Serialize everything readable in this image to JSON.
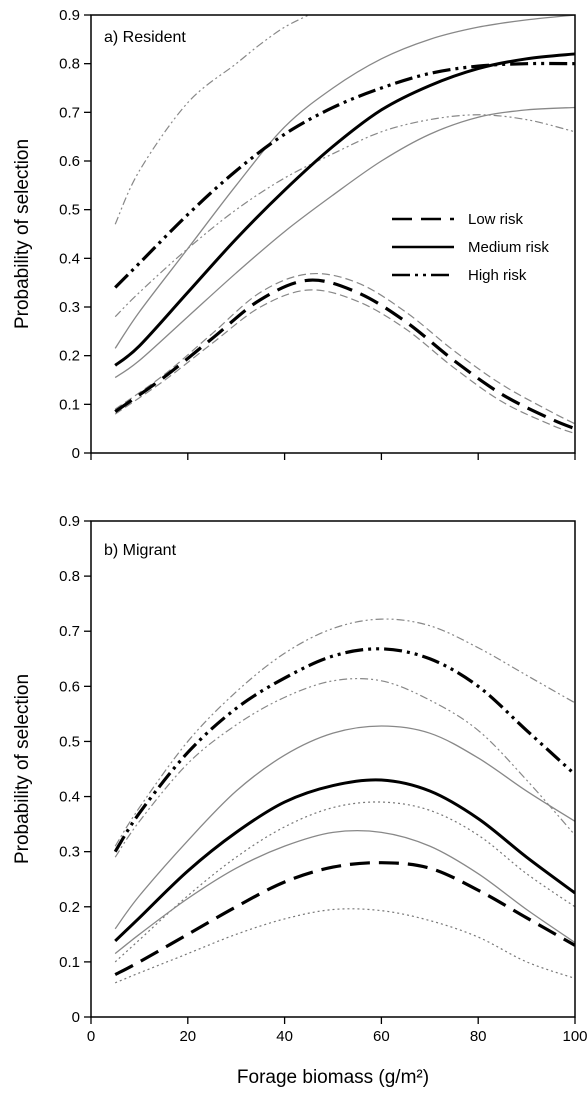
{
  "chart_data": [
    {
      "type": "line",
      "panel_label": "a) Resident",
      "xlabel": "",
      "ylabel": "Probability of selection",
      "xlim": [
        0,
        100
      ],
      "ylim": [
        0,
        0.9
      ],
      "xticks": [
        0,
        20,
        40,
        60,
        80,
        100
      ],
      "xtick_labels_shown": false,
      "yticks": [
        0,
        0.1,
        0.2,
        0.3,
        0.4,
        0.5,
        0.6,
        0.7,
        0.8,
        0.9
      ],
      "ytick_labels": [
        "0",
        "0.1",
        "0.2",
        "0.3",
        "0.4",
        "0.5",
        "0.6",
        "0.7",
        "0.8",
        "0.9"
      ],
      "grid": false,
      "legend": {
        "placement": "center-right",
        "entries": [
          "Low risk",
          "Medium risk",
          "High risk"
        ]
      },
      "series": [
        {
          "name": "Low risk",
          "style": "long-dash",
          "x": [
            5,
            15,
            25,
            35,
            45,
            55,
            65,
            75,
            85,
            95,
            100
          ],
          "y": [
            0.085,
            0.155,
            0.235,
            0.315,
            0.355,
            0.33,
            0.27,
            0.19,
            0.12,
            0.07,
            0.05
          ]
        },
        {
          "style": "long-dash-band",
          "x": [
            5,
            15,
            25,
            35,
            45,
            55,
            65,
            75,
            85,
            95,
            100
          ],
          "y": [
            0.09,
            0.16,
            0.245,
            0.33,
            0.368,
            0.35,
            0.29,
            0.21,
            0.14,
            0.085,
            0.06
          ]
        },
        {
          "style": "long-dash-band",
          "x": [
            5,
            15,
            25,
            35,
            45,
            55,
            65,
            75,
            85,
            95,
            100
          ],
          "y": [
            0.08,
            0.148,
            0.225,
            0.3,
            0.335,
            0.312,
            0.255,
            0.175,
            0.105,
            0.058,
            0.04
          ]
        },
        {
          "name": "Medium risk",
          "style": "solid",
          "x": [
            5,
            10,
            20,
            30,
            40,
            50,
            60,
            70,
            80,
            90,
            100
          ],
          "y": [
            0.18,
            0.22,
            0.33,
            0.44,
            0.54,
            0.63,
            0.705,
            0.755,
            0.79,
            0.81,
            0.82
          ]
        },
        {
          "style": "solid-band",
          "x": [
            5,
            10,
            20,
            30,
            40,
            50,
            60,
            70,
            80,
            90,
            100
          ],
          "y": [
            0.215,
            0.29,
            0.42,
            0.55,
            0.67,
            0.75,
            0.81,
            0.85,
            0.875,
            0.89,
            0.9
          ]
        },
        {
          "style": "solid-band",
          "x": [
            5,
            10,
            20,
            30,
            40,
            50,
            60,
            70,
            80,
            90,
            100
          ],
          "y": [
            0.155,
            0.19,
            0.28,
            0.37,
            0.455,
            0.53,
            0.6,
            0.655,
            0.69,
            0.705,
            0.71
          ]
        },
        {
          "name": "High risk",
          "style": "dash-dot-dot",
          "x": [
            5,
            10,
            20,
            30,
            40,
            50,
            60,
            70,
            80,
            90,
            100
          ],
          "y": [
            0.34,
            0.39,
            0.49,
            0.58,
            0.655,
            0.71,
            0.75,
            0.78,
            0.795,
            0.8,
            0.8
          ]
        },
        {
          "style": "dash-dot-band",
          "x": [
            5,
            10,
            20,
            30,
            35,
            40,
            45
          ],
          "y": [
            0.47,
            0.58,
            0.72,
            0.8,
            0.84,
            0.875,
            0.9
          ]
        },
        {
          "style": "dash-dot-band",
          "x": [
            5,
            10,
            20,
            30,
            40,
            50,
            60,
            70,
            80,
            90,
            100
          ],
          "y": [
            0.28,
            0.33,
            0.42,
            0.5,
            0.565,
            0.615,
            0.66,
            0.685,
            0.695,
            0.685,
            0.66
          ]
        }
      ]
    },
    {
      "type": "line",
      "panel_label": "b) Migrant",
      "xlabel": "Forage biomass (g/m²)",
      "ylabel": "Probability of selection",
      "xlim": [
        0,
        100
      ],
      "ylim": [
        0,
        0.9
      ],
      "xticks": [
        0,
        20,
        40,
        60,
        80,
        100
      ],
      "xtick_labels": [
        "0",
        "20",
        "40",
        "60",
        "80",
        "100"
      ],
      "yticks": [
        0,
        0.1,
        0.2,
        0.3,
        0.4,
        0.5,
        0.6,
        0.7,
        0.8,
        0.9
      ],
      "ytick_labels": [
        "0",
        "0.1",
        "0.2",
        "0.3",
        "0.4",
        "0.5",
        "0.6",
        "0.7",
        "0.8",
        "0.9"
      ],
      "grid": false,
      "series": [
        {
          "name": "Low risk",
          "style": "long-dash",
          "x": [
            5,
            10,
            20,
            30,
            40,
            50,
            60,
            70,
            80,
            90,
            100
          ],
          "y": [
            0.077,
            0.1,
            0.15,
            0.2,
            0.245,
            0.272,
            0.28,
            0.27,
            0.23,
            0.18,
            0.13
          ]
        },
        {
          "style": "dotted-band",
          "x": [
            5,
            10,
            20,
            30,
            40,
            50,
            60,
            70,
            80,
            90,
            100
          ],
          "y": [
            0.1,
            0.14,
            0.22,
            0.29,
            0.345,
            0.38,
            0.39,
            0.375,
            0.33,
            0.26,
            0.2
          ]
        },
        {
          "style": "dotted-band",
          "x": [
            5,
            10,
            20,
            30,
            40,
            50,
            60,
            70,
            80,
            90,
            100
          ],
          "y": [
            0.062,
            0.08,
            0.115,
            0.15,
            0.178,
            0.195,
            0.193,
            0.175,
            0.145,
            0.1,
            0.07
          ]
        },
        {
          "name": "Medium risk",
          "style": "solid",
          "x": [
            5,
            10,
            20,
            30,
            40,
            50,
            60,
            70,
            80,
            90,
            100
          ],
          "y": [
            0.138,
            0.18,
            0.265,
            0.335,
            0.39,
            0.42,
            0.43,
            0.41,
            0.36,
            0.29,
            0.225
          ]
        },
        {
          "style": "solid-band",
          "x": [
            5,
            10,
            20,
            30,
            40,
            50,
            60,
            70,
            80,
            90,
            100
          ],
          "y": [
            0.16,
            0.22,
            0.32,
            0.41,
            0.475,
            0.515,
            0.528,
            0.515,
            0.47,
            0.41,
            0.355
          ]
        },
        {
          "style": "solid-band",
          "x": [
            5,
            10,
            20,
            30,
            40,
            50,
            60,
            70,
            80,
            90,
            100
          ],
          "y": [
            0.115,
            0.15,
            0.215,
            0.27,
            0.31,
            0.335,
            0.335,
            0.31,
            0.26,
            0.195,
            0.135
          ]
        },
        {
          "name": "High risk",
          "style": "dash-dot-dot",
          "x": [
            5,
            10,
            20,
            30,
            40,
            50,
            60,
            70,
            80,
            90,
            100
          ],
          "y": [
            0.3,
            0.37,
            0.48,
            0.56,
            0.615,
            0.655,
            0.668,
            0.65,
            0.6,
            0.52,
            0.44
          ]
        },
        {
          "style": "dash-dot-band",
          "x": [
            5,
            10,
            20,
            30,
            40,
            50,
            60,
            70,
            80,
            90,
            100
          ],
          "y": [
            0.31,
            0.38,
            0.5,
            0.59,
            0.66,
            0.705,
            0.722,
            0.71,
            0.67,
            0.62,
            0.57
          ]
        },
        {
          "style": "dash-dot-band",
          "x": [
            5,
            10,
            20,
            30,
            40,
            50,
            60,
            70,
            80,
            90,
            100
          ],
          "y": [
            0.29,
            0.355,
            0.46,
            0.53,
            0.58,
            0.61,
            0.61,
            0.575,
            0.52,
            0.43,
            0.33
          ]
        }
      ]
    }
  ]
}
